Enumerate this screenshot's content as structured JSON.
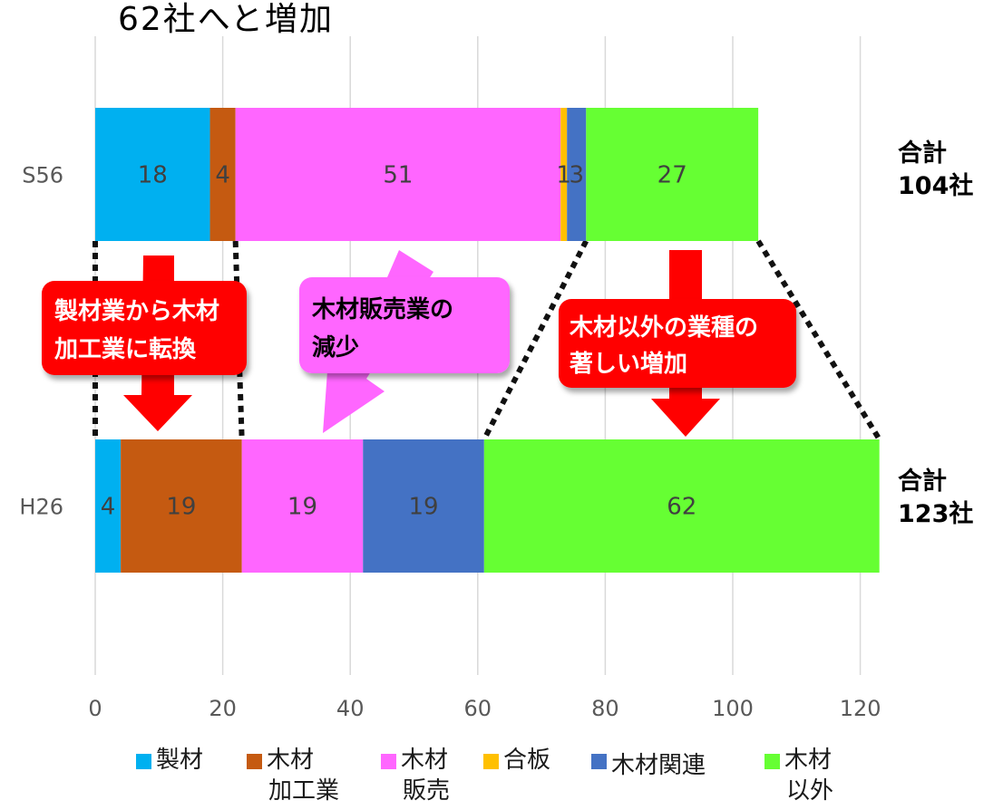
{
  "headline": "62社へと増加",
  "totals": [
    {
      "line1": "合計",
      "line2": "104社"
    },
    {
      "line1": "合計",
      "line2": "123社"
    }
  ],
  "callouts": [
    {
      "line1": "製材業から木材",
      "line2": "加工業に転換"
    },
    {
      "line1": "木材販売業の",
      "line2": "減少"
    },
    {
      "line1": "木材以外の業種の",
      "line2": "著しい増加"
    }
  ],
  "colors": {
    "製材": "#00B0F0",
    "木材加工業": "#C55A11",
    "木材販売": "#FF66FF",
    "合板": "#FFC000",
    "木材関連": "#4472C4",
    "木材以外": "#66FF33",
    "callout_red": "#FF0000",
    "callout_pink": "#FF66FF"
  },
  "chart_data": {
    "type": "bar",
    "orientation": "horizontal",
    "stacked": true,
    "categories": [
      "S56",
      "H26"
    ],
    "series": [
      {
        "name": "製材",
        "values": [
          18,
          4
        ]
      },
      {
        "name": "木材加工業",
        "values": [
          4,
          19
        ]
      },
      {
        "name": "木材販売",
        "values": [
          51,
          19
        ]
      },
      {
        "name": "合板",
        "values": [
          1,
          0
        ]
      },
      {
        "name": "木材関連",
        "values": [
          3,
          19
        ]
      },
      {
        "name": "木材以外",
        "values": [
          27,
          62
        ]
      }
    ],
    "data_labels": [
      [
        "18",
        "4",
        "51",
        "1",
        "3",
        "27"
      ],
      [
        "4",
        "19",
        "19",
        "",
        "19",
        "62"
      ]
    ],
    "xlim": [
      0,
      120
    ],
    "xticks": [
      "0",
      "20",
      "40",
      "60",
      "80",
      "100",
      "120"
    ],
    "grid": "vertical",
    "legend_position": "bottom",
    "legend": [
      {
        "line1": "製材",
        "line2": ""
      },
      {
        "line1": "木材",
        "line2": "加工業"
      },
      {
        "line1": "木材",
        "line2": "販売"
      },
      {
        "line1": "合板",
        "line2": ""
      },
      {
        "line1": "木材関連",
        "line2": ""
      },
      {
        "line1": "木材",
        "line2": "以外"
      }
    ]
  }
}
